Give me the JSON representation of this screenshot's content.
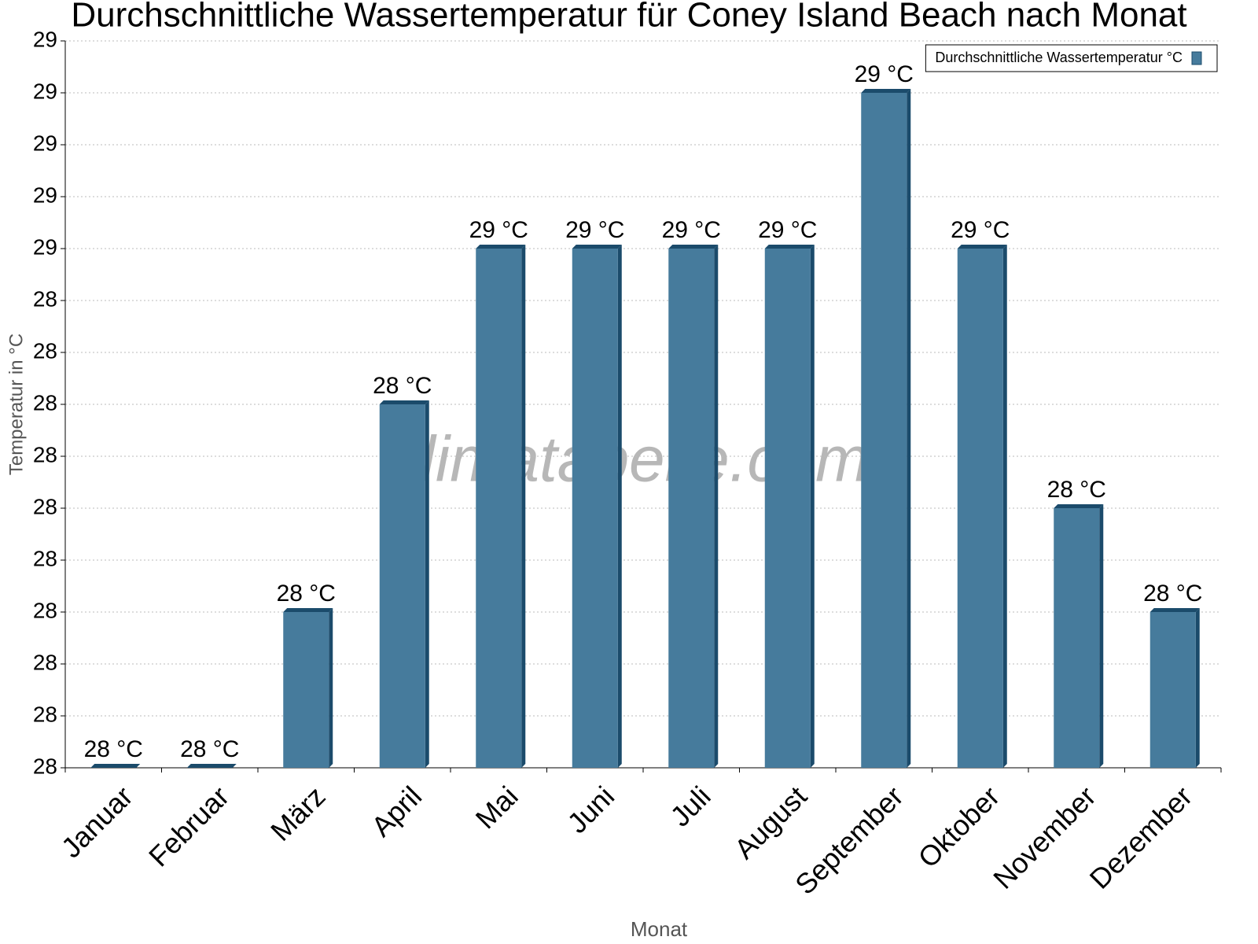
{
  "chart_data": {
    "type": "bar",
    "title": "Durchschnittliche Wassertemperatur für Coney Island Beach nach Monat",
    "x_label": "Monat",
    "y_label": "Temperatur in °C",
    "watermark": "klimatabelle.com",
    "categories": [
      "Januar",
      "Februar",
      "März",
      "April",
      "Mai",
      "Juni",
      "Juli",
      "August",
      "September",
      "Oktober",
      "November",
      "Dezember"
    ],
    "series": [
      {
        "name": "Durchschnittliche Wassertemperatur °C",
        "color": "#467b9c",
        "values": [
          27.5,
          27.5,
          27.8,
          28.2,
          28.5,
          28.5,
          28.5,
          28.5,
          28.8,
          28.5,
          28.0,
          27.8
        ],
        "value_labels": [
          "28 °C",
          "28 °C",
          "28 °C",
          "28 °C",
          "29 °C",
          "29 °C",
          "29 °C",
          "29 °C",
          "29 °C",
          "29 °C",
          "28 °C",
          "28 °C"
        ]
      }
    ],
    "ylim": [
      27.5,
      28.9
    ],
    "yticks": [
      {
        "value": 27.5,
        "label": "28"
      },
      {
        "value": 27.6,
        "label": "28"
      },
      {
        "value": 27.7,
        "label": "28"
      },
      {
        "value": 27.8,
        "label": "28"
      },
      {
        "value": 27.9,
        "label": "28"
      },
      {
        "value": 28.0,
        "label": "28"
      },
      {
        "value": 28.1,
        "label": "28"
      },
      {
        "value": 28.2,
        "label": "28"
      },
      {
        "value": 28.3,
        "label": "28"
      },
      {
        "value": 28.4,
        "label": "28"
      },
      {
        "value": 28.5,
        "label": "29"
      },
      {
        "value": 28.6,
        "label": "29"
      },
      {
        "value": 28.7,
        "label": "29"
      },
      {
        "value": 28.8,
        "label": "29"
      },
      {
        "value": 28.9,
        "label": "29"
      }
    ],
    "grid": true,
    "legend": "top-right"
  }
}
